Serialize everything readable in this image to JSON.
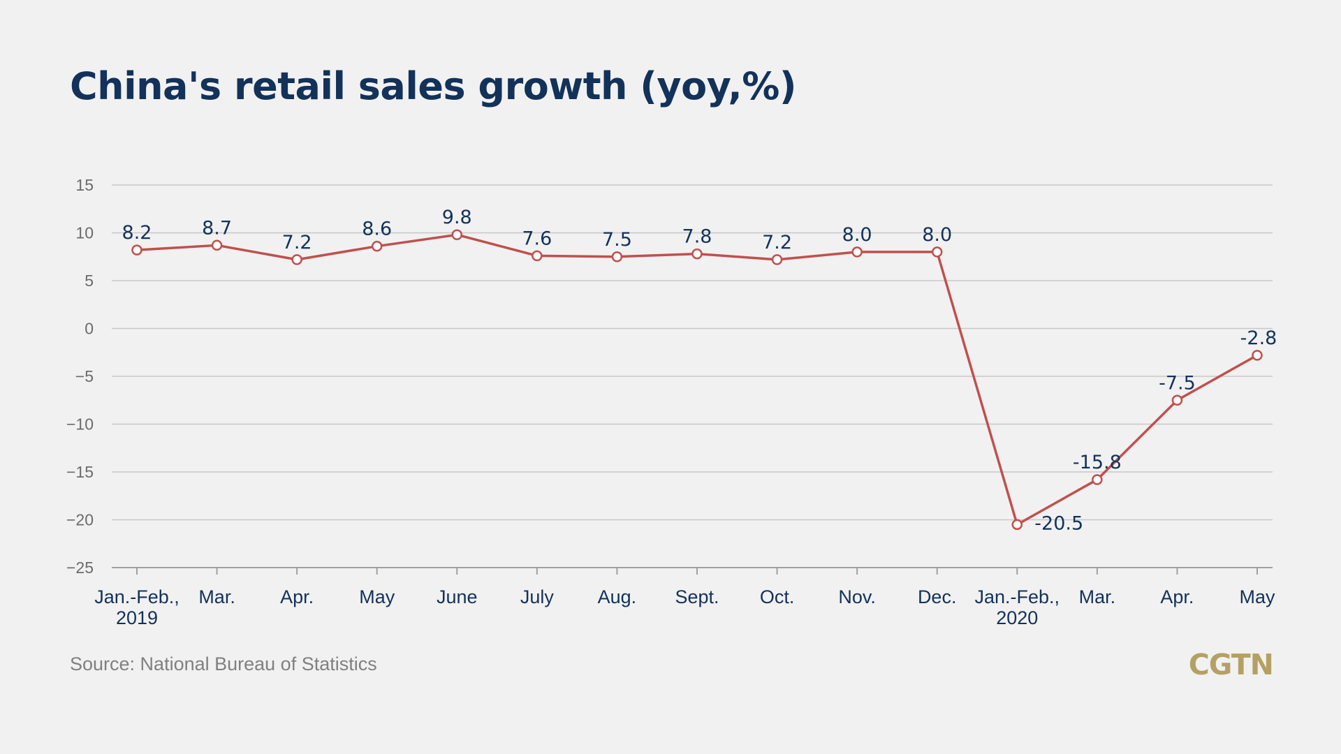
{
  "title": "China's retail sales growth (yoy,%)",
  "source": "Source: National Bureau of Statistics",
  "brand": "CGTN",
  "colors": {
    "background": "#f1f1f1",
    "title": "#13325a",
    "line": "#c0504d",
    "grid": "#c8c8c8",
    "axis": "#a0a0a0",
    "brand": "#b5a064"
  },
  "chart_data": {
    "type": "line",
    "title": "China's retail sales growth (yoy,%)",
    "xlabel": "",
    "ylabel": "",
    "ylim": [
      -25,
      15
    ],
    "yticks": [
      15,
      10,
      5,
      0,
      -5,
      -10,
      -15,
      -20,
      -25
    ],
    "grid": true,
    "legend": "none",
    "categories": [
      [
        "Jan.-Feb.,",
        "2019"
      ],
      [
        "Mar."
      ],
      [
        "Apr."
      ],
      [
        "May"
      ],
      [
        "June"
      ],
      [
        "July"
      ],
      [
        "Aug."
      ],
      [
        "Sept."
      ],
      [
        "Oct."
      ],
      [
        "Nov."
      ],
      [
        "Dec."
      ],
      [
        "Jan.-Feb.,",
        "2020"
      ],
      [
        "Mar."
      ],
      [
        "Apr."
      ],
      [
        "May"
      ]
    ],
    "series": [
      {
        "values": [
          8.2,
          8.7,
          7.2,
          8.6,
          9.8,
          7.6,
          7.5,
          7.8,
          7.2,
          8.0,
          8.0,
          -20.5,
          -15.8,
          -7.5,
          -2.8
        ],
        "labels": [
          "8.2",
          "8.7",
          "7.2",
          "8.6",
          "9.8",
          "7.6",
          "7.5",
          "7.8",
          "7.2",
          "8.0",
          "8.0",
          "-20.5",
          "-15.8",
          "-7.5",
          "-2.8"
        ]
      }
    ]
  }
}
